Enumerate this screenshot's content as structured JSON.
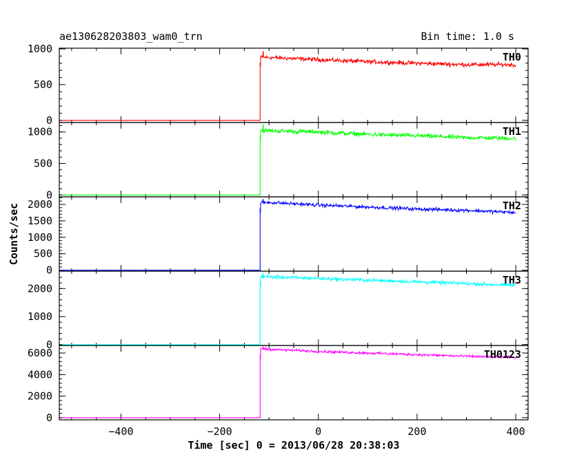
{
  "header": {
    "title": "ae130628203803_wam0_trn",
    "bin_time": "Bin time: 1.0 s"
  },
  "chart_data": {
    "type": "line",
    "xlabel": "Time [sec] 0 = 2013/06/28 20:38:03",
    "ylabel": "Counts/sec",
    "xlim": [
      -525,
      425
    ],
    "xticks": [
      -400,
      -200,
      0,
      200,
      400
    ],
    "xtick_labels": [
      "−400",
      "−200",
      "0",
      "200",
      "400"
    ],
    "trigger_time": -118,
    "panels": [
      {
        "name": "TH0",
        "color": "#ff0000",
        "ylim": [
          -30,
          1010
        ],
        "yticks": [
          0,
          500,
          1000
        ],
        "background_level": 0,
        "series": {
          "x": [
            -110,
            -100,
            0,
            100,
            200,
            300,
            390,
            400
          ],
          "y": [
            880,
            880,
            850,
            820,
            800,
            780,
            780,
            770
          ]
        },
        "noise": 25,
        "peak": 970
      },
      {
        "name": "TH1",
        "color": "#00ff00",
        "ylim": [
          -30,
          1150
        ],
        "yticks": [
          0,
          500,
          1000
        ],
        "background_level": 0,
        "series": {
          "x": [
            -110,
            -100,
            0,
            100,
            200,
            300,
            390,
            400
          ],
          "y": [
            1020,
            1020,
            1000,
            960,
            940,
            910,
            900,
            890
          ]
        },
        "noise": 30,
        "peak": 1120
      },
      {
        "name": "TH2",
        "color": "#0000ff",
        "ylim": [
          -30,
          2230
        ],
        "yticks": [
          0,
          500,
          1000,
          1500,
          2000
        ],
        "background_level": 0,
        "series": {
          "x": [
            -110,
            -100,
            0,
            100,
            200,
            300,
            390,
            400
          ],
          "y": [
            2050,
            2060,
            1980,
            1920,
            1860,
            1820,
            1760,
            1740
          ]
        },
        "noise": 45,
        "peak": 2160
      },
      {
        "name": "TH3",
        "color": "#00ffff",
        "ylim": [
          -30,
          2620
        ],
        "yticks": [
          0,
          1000,
          2000
        ],
        "background_level": 0,
        "series": {
          "x": [
            -110,
            -100,
            0,
            100,
            200,
            300,
            390,
            400
          ],
          "y": [
            2420,
            2420,
            2360,
            2300,
            2240,
            2180,
            2120,
            2120
          ]
        },
        "noise": 55,
        "peak": 2560
      },
      {
        "name": "TH0123",
        "color": "#ff00ff",
        "ylim": [
          -200,
          6700
        ],
        "yticks": [
          0,
          2000,
          4000,
          6000
        ],
        "background_level": 0,
        "series": {
          "x": [
            -110,
            -100,
            0,
            100,
            200,
            300,
            390,
            400
          ],
          "y": [
            6400,
            6350,
            6150,
            6000,
            5850,
            5700,
            5600,
            5550
          ]
        },
        "noise": 100,
        "peak": 6600
      }
    ]
  }
}
